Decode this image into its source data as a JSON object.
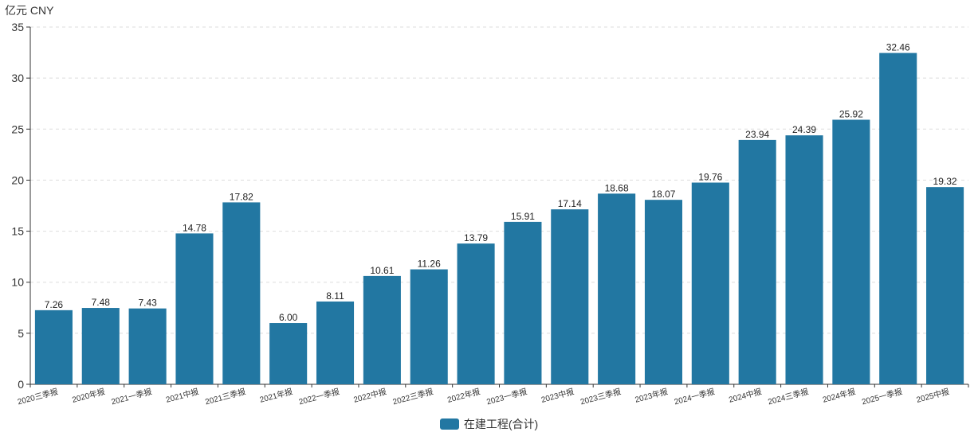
{
  "chart_data": {
    "type": "bar",
    "unit_label": "亿元  CNY",
    "categories": [
      "2020三季报",
      "2020年报",
      "2021一季报",
      "2021中报",
      "2021三季报",
      "2021年报",
      "2022一季报",
      "2022中报",
      "2022三季报",
      "2022年报",
      "2023一季报",
      "2023中报",
      "2023三季报",
      "2023年报",
      "2024一季报",
      "2024中报",
      "2024三季报",
      "2024年报",
      "2025一季报",
      "2025中报"
    ],
    "series": [
      {
        "name": "在建工程(合计)",
        "values": [
          7.26,
          7.48,
          7.43,
          14.78,
          17.82,
          6.0,
          8.11,
          10.61,
          11.26,
          13.79,
          15.91,
          17.14,
          18.68,
          18.07,
          19.76,
          23.94,
          24.39,
          25.92,
          32.46,
          19.32
        ],
        "value_labels": [
          "7.26",
          "7.48",
          "7.43",
          "14.78",
          "17.82",
          "6.00",
          "8.11",
          "10.61",
          "11.26",
          "13.79",
          "15.91",
          "17.14",
          "18.68",
          "18.07",
          "19.76",
          "23.94",
          "24.39",
          "25.92",
          "32.46",
          "19.32"
        ],
        "color": "#2277a2"
      }
    ],
    "ylim": [
      0,
      35
    ],
    "yticks": [
      0,
      5,
      10,
      15,
      20,
      25,
      30,
      35
    ],
    "grid": true,
    "legend_position": "bottom-center"
  }
}
